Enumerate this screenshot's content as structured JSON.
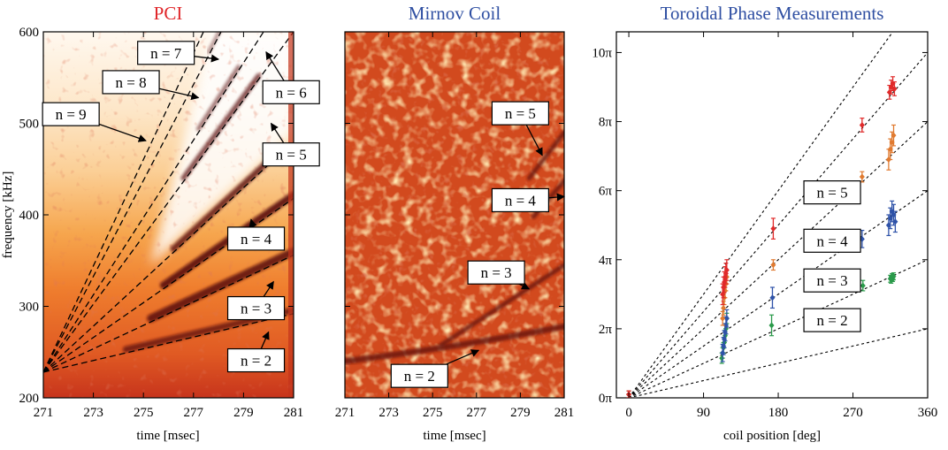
{
  "chart_data": [
    {
      "type": "heatmap",
      "title": "PCI",
      "title_color": "#e0262a",
      "xlabel": "time [msec]",
      "ylabel": "frequency [kHz]",
      "xlim": [
        271,
        281
      ],
      "ylim": [
        200,
        600
      ],
      "xticks": [
        271,
        273,
        275,
        277,
        279,
        281
      ],
      "yticks": [
        200,
        300,
        400,
        500,
        600
      ],
      "colormap": [
        "#ffffff",
        "#fbd7a5",
        "#f9a54a",
        "#ef7a2b",
        "#d24a1e",
        "#a2271c",
        "#5a0d0c"
      ],
      "mode_lines": [
        {
          "n": "n = 2",
          "t0": 271,
          "f0": 228,
          "t1": 281,
          "f1": 292
        },
        {
          "n": "n = 3",
          "t0": 271,
          "f0": 228,
          "t1": 281,
          "f1": 356
        },
        {
          "n": "n = 4",
          "t0": 271,
          "f0": 228,
          "t1": 281,
          "f1": 418
        },
        {
          "n": "n = 5",
          "t0": 271,
          "f0": 228,
          "t1": 281,
          "f1": 480
        },
        {
          "n": "n = 6",
          "t0": 271,
          "f0": 228,
          "t1": 281,
          "f1": 600
        },
        {
          "n": "n = 7",
          "t0": 271,
          "f0": 228,
          "t1": 279.8,
          "f1": 600
        },
        {
          "n": "n = 8",
          "t0": 271,
          "f0": 228,
          "t1": 278.1,
          "f1": 600
        },
        {
          "n": "n = 9",
          "t0": 271,
          "f0": 228,
          "t1": 277.4,
          "f1": 600
        }
      ],
      "annotations": [
        {
          "text": "n = 7",
          "box_t": 275.9,
          "box_f": 577,
          "arrow_t": 278.0,
          "arrow_f": 570
        },
        {
          "text": "n = 8",
          "box_t": 274.5,
          "box_f": 545,
          "arrow_t": 277.2,
          "arrow_f": 528
        },
        {
          "text": "n = 9",
          "box_t": 272.1,
          "box_f": 510,
          "arrow_t": 275.1,
          "arrow_f": 481
        },
        {
          "text": "n = 6",
          "box_t": 280.9,
          "box_f": 534,
          "arrow_t": 279.9,
          "arrow_f": 578
        },
        {
          "text": "n = 5",
          "box_t": 280.9,
          "box_f": 466,
          "arrow_t": 280.1,
          "arrow_f": 500
        },
        {
          "text": "n = 4",
          "box_t": 279.5,
          "box_f": 374,
          "arrow_t": 279.3,
          "arrow_f": 395
        },
        {
          "text": "n = 3",
          "box_t": 279.5,
          "box_f": 298,
          "arrow_t": 280.2,
          "arrow_f": 327
        },
        {
          "text": "n = 2",
          "box_t": 279.5,
          "box_f": 241,
          "arrow_t": 280.0,
          "arrow_f": 272
        }
      ]
    },
    {
      "type": "heatmap",
      "title": "Mirnov Coil",
      "title_color": "#2f4fa2",
      "xlabel": "time [msec]",
      "xlim": [
        271,
        281
      ],
      "ylim": [
        200,
        600
      ],
      "xticks": [
        271,
        273,
        275,
        277,
        279,
        281
      ],
      "colormap": [
        "#c23a1e",
        "#d7531f",
        "#e5742a",
        "#f39a40",
        "#ffd07a",
        "#7a1510"
      ],
      "mode_lines": [
        {
          "n": "n = 2",
          "t0": 271,
          "f0": 240,
          "t1": 281,
          "f1": 278
        },
        {
          "n": "n = 3",
          "t0": 275.4,
          "f0": 258,
          "t1": 281,
          "f1": 345
        },
        {
          "n": "n = 4",
          "t0": 279.6,
          "f0": 398,
          "t1": 281,
          "f1": 437
        },
        {
          "n": "n = 5",
          "t0": 279.4,
          "f0": 440,
          "t1": 281,
          "f1": 490
        }
      ],
      "annotations": [
        {
          "text": "n = 5",
          "box_t": 279.0,
          "box_f": 511,
          "arrow_t": 280.0,
          "arrow_f": 465
        },
        {
          "text": "n = 4",
          "box_t": 279.0,
          "box_f": 416,
          "arrow_t": 281.0,
          "arrow_f": 420
        },
        {
          "text": "n = 3",
          "box_t": 277.9,
          "box_f": 337,
          "arrow_t": 279.4,
          "arrow_f": 319
        },
        {
          "text": "n = 2",
          "box_t": 274.4,
          "box_f": 224,
          "arrow_t": 277.1,
          "arrow_f": 252
        }
      ]
    },
    {
      "type": "scatter",
      "title": "Toroidal Phase Measurements",
      "title_color": "#2f4fa2",
      "xlabel": "coil position [deg]",
      "xlim": [
        -15,
        360
      ],
      "ylim": [
        0,
        10.6
      ],
      "xticks": [
        0,
        90,
        180,
        270,
        360
      ],
      "xtick_labels": [
        "0",
        "90",
        "180",
        "270",
        "360"
      ],
      "yticks": [
        0,
        2,
        4,
        6,
        8,
        10
      ],
      "ytick_labels": [
        "0π",
        "2π",
        "4π",
        "6π",
        "8π",
        "10π"
      ],
      "reference_lines": [
        {
          "n": 1,
          "slope_pi_per_deg": 0.005556
        },
        {
          "n": 2,
          "slope_pi_per_deg": 0.011111
        },
        {
          "n": 3,
          "slope_pi_per_deg": 0.016667
        },
        {
          "n": 4,
          "slope_pi_per_deg": 0.022222
        },
        {
          "n": 5,
          "slope_pi_per_deg": 0.027778
        },
        {
          "n": 6,
          "slope_pi_per_deg": 0.033333
        }
      ],
      "series": [
        {
          "label": "n = 2",
          "color": "#2a9a4a",
          "x": [
            0,
            112,
            113,
            114,
            115,
            116,
            117,
            118,
            172,
            282,
            315,
            316,
            317,
            318,
            319
          ],
          "y": [
            0.1,
            1.15,
            1.3,
            1.45,
            1.6,
            1.8,
            2.0,
            2.3,
            2.1,
            3.25,
            3.45,
            3.42,
            3.5,
            3.47,
            3.52
          ],
          "err": [
            0.1,
            0.15,
            0.15,
            0.15,
            0.15,
            0.15,
            0.15,
            0.15,
            0.3,
            0.15,
            0.1,
            0.1,
            0.1,
            0.1,
            0.1
          ]
        },
        {
          "label": "n = 3",
          "color": "#2e52a8",
          "x": [
            0,
            113,
            114,
            115,
            116,
            117,
            118,
            173,
            281,
            313,
            315,
            317,
            319,
            321
          ],
          "y": [
            0.1,
            1.3,
            1.5,
            1.7,
            1.9,
            2.1,
            2.3,
            2.9,
            4.6,
            5.0,
            5.2,
            5.4,
            5.3,
            5.1
          ],
          "err": [
            0.1,
            0.25,
            0.25,
            0.25,
            0.25,
            0.25,
            0.25,
            0.3,
            0.25,
            0.3,
            0.3,
            0.3,
            0.3,
            0.3
          ]
        },
        {
          "label": "n = 4",
          "color": "#e07a30",
          "x": [
            0,
            113,
            114,
            115,
            116,
            117,
            118,
            174,
            281,
            313,
            315,
            317,
            319
          ],
          "y": [
            0.1,
            2.3,
            2.6,
            2.9,
            3.1,
            3.3,
            3.5,
            3.85,
            6.4,
            6.9,
            7.2,
            7.4,
            7.6
          ],
          "err": [
            0.1,
            0.2,
            0.2,
            0.2,
            0.2,
            0.2,
            0.2,
            0.15,
            0.15,
            0.3,
            0.3,
            0.3,
            0.3
          ]
        },
        {
          "label": "n = 5",
          "color": "#e02a2a",
          "x": [
            0,
            113,
            114,
            115,
            116,
            117,
            118,
            174,
            281,
            314,
            316,
            318,
            320
          ],
          "y": [
            0.1,
            3.0,
            3.2,
            3.35,
            3.5,
            3.6,
            3.7,
            4.9,
            7.9,
            8.85,
            9.0,
            9.1,
            8.95
          ],
          "err": [
            0.1,
            0.3,
            0.3,
            0.3,
            0.3,
            0.3,
            0.3,
            0.3,
            0.2,
            0.2,
            0.2,
            0.2,
            0.2
          ]
        }
      ],
      "annotations": [
        {
          "text": "n = 5",
          "box_x": 245,
          "box_y": 5.95
        },
        {
          "text": "n = 4",
          "box_x": 245,
          "box_y": 4.55
        },
        {
          "text": "n = 3",
          "box_x": 245,
          "box_y": 3.4
        },
        {
          "text": "n = 2",
          "box_x": 245,
          "box_y": 2.25
        }
      ]
    }
  ]
}
